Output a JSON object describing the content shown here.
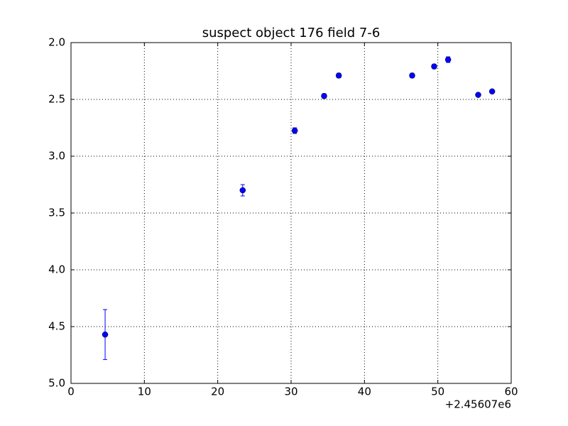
{
  "chart_data": {
    "type": "scatter",
    "title": "suspect object 176 field 7-6",
    "x": [
      4.65,
      23.4,
      30.5,
      34.5,
      36.5,
      46.5,
      49.5,
      51.4,
      55.5,
      57.4
    ],
    "x_offset_label": "+2.45607e6",
    "series": [
      {
        "color": "#0000ff",
        "values": [
          4.57,
          3.3,
          2.775,
          2.47,
          2.29,
          2.29,
          2.21,
          2.15,
          2.46,
          2.43
        ],
        "errors": [
          0.22,
          0.05,
          0.025,
          0.02,
          0.02,
          0.02,
          0.02,
          0.025,
          0.015,
          0.015
        ]
      }
    ],
    "xlim": [
      0,
      60
    ],
    "xticks": [
      0,
      10,
      20,
      30,
      40,
      50,
      60
    ],
    "ylim": [
      5,
      2
    ],
    "yticks": [
      {
        "value": 2,
        "label": "2.0"
      },
      2.5,
      {
        "value": 3,
        "label": "3.0"
      },
      3.5,
      {
        "value": 4,
        "label": "4.0"
      },
      4.5,
      {
        "value": 5,
        "label": "5.0"
      }
    ],
    "grid": true
  }
}
